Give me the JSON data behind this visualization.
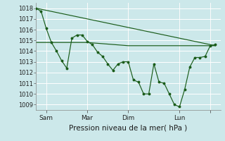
{
  "xlabel": "Pression niveau de la mer( hPa )",
  "bg_color": "#cce8ea",
  "grid_color": "#ffffff",
  "line_color": "#1a5c1a",
  "ylim": [
    1008.5,
    1018.5
  ],
  "yticks": [
    1009,
    1010,
    1011,
    1012,
    1013,
    1014,
    1015,
    1016,
    1017,
    1018
  ],
  "xlim": [
    0,
    216
  ],
  "xtick_positions": [
    12,
    60,
    108,
    168,
    204
  ],
  "xtick_labels": [
    "Sam",
    "Mar",
    "Dim",
    "Lun",
    ""
  ],
  "vlines": [
    12,
    60,
    108,
    168,
    204
  ],
  "series1_x": [
    0,
    6,
    12,
    18,
    24,
    30,
    36,
    42,
    48,
    54,
    60,
    66,
    72,
    78,
    84,
    90,
    96,
    102,
    108,
    114,
    120,
    126,
    132,
    138,
    144,
    150,
    156,
    162,
    168,
    174,
    180,
    186,
    192,
    198,
    204,
    210
  ],
  "series1_y": [
    1018.0,
    1017.7,
    1016.1,
    1014.8,
    1014.0,
    1013.1,
    1012.4,
    1015.2,
    1015.5,
    1015.5,
    1014.9,
    1014.6,
    1013.9,
    1013.5,
    1012.8,
    1012.2,
    1012.8,
    1013.0,
    1013.0,
    1011.3,
    1011.1,
    1010.0,
    1010.0,
    1012.8,
    1011.1,
    1011.0,
    1010.0,
    1009.0,
    1008.8,
    1010.4,
    1012.5,
    1013.4,
    1013.4,
    1013.5,
    1014.5,
    1014.6
  ],
  "series2_x": [
    0,
    210
  ],
  "series2_y": [
    1018.0,
    1014.5
  ],
  "series3_x": [
    0,
    60,
    108,
    210
  ],
  "series3_y": [
    1014.8,
    1014.8,
    1014.5,
    1014.5
  ]
}
